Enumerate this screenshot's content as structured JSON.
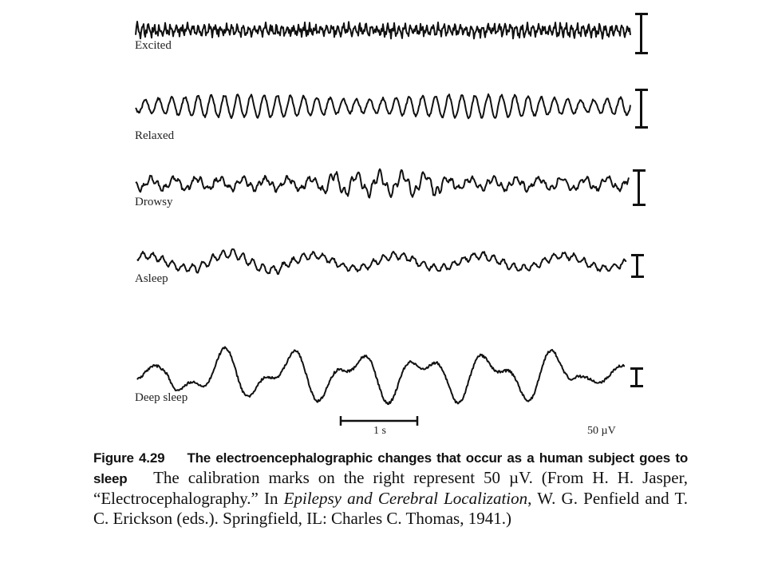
{
  "figure": {
    "traces": [
      {
        "label": "Excited",
        "state": "excited"
      },
      {
        "label": "Relaxed",
        "state": "relaxed"
      },
      {
        "label": "Drowsy",
        "state": "drowsy"
      },
      {
        "label": "Asleep",
        "state": "asleep"
      },
      {
        "label": "Deep sleep",
        "state": "deep-sleep"
      }
    ],
    "time_scale_label": "1 s",
    "amplitude_scale_label": "50 µV"
  },
  "caption": {
    "figure_number": "Figure 4.29",
    "title": "The electroencephalographic changes that occur as a human subject goes to sleep",
    "text_1": "The calibration marks on the right represent 50 µV. (From H. H. Jasper, “Electrocephalography.” In ",
    "book_title": "Epilepsy and Cerebral Localization",
    "text_2": ", W. G. Penfield and T. C. Erickson (eds.). Springfield, IL: Charles C. Thomas, 1941.)"
  }
}
